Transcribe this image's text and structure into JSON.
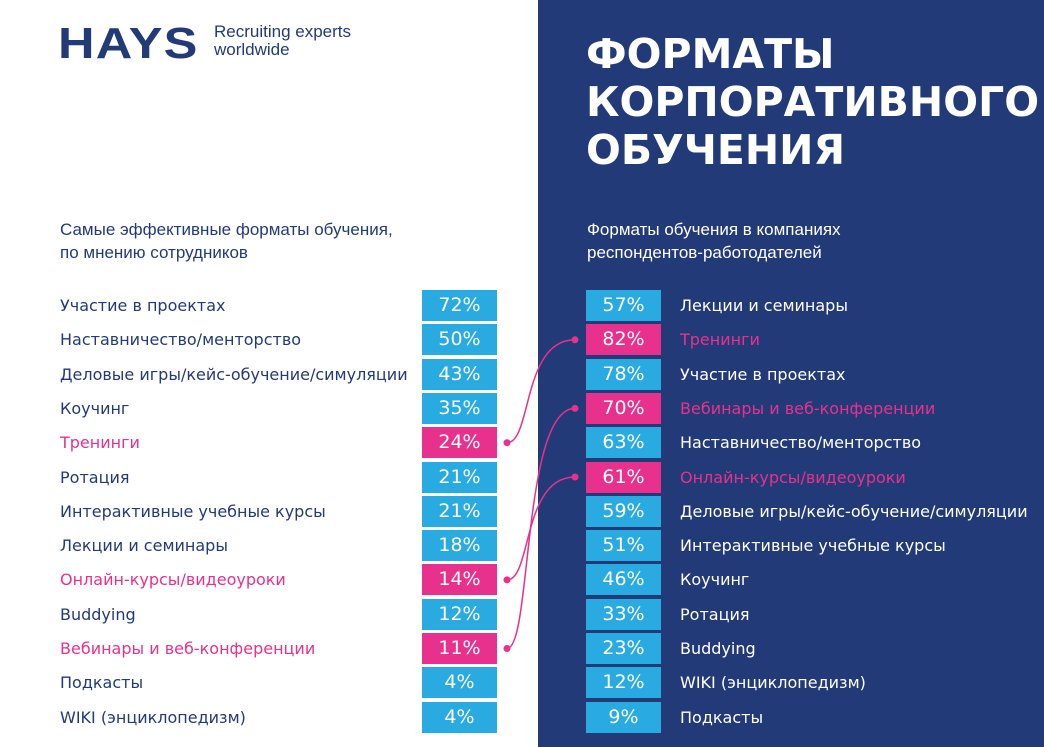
{
  "header": {
    "logo": "HAYS",
    "tagline_line1": "Recruiting experts",
    "tagline_line2": "worldwide"
  },
  "title": {
    "line1": "ФОРМАТЫ",
    "line2": "КОРПОРАТИВНОГО",
    "line3": "ОБУЧЕНИЯ"
  },
  "colors": {
    "navy": "#233a78",
    "blue": "#29abe2",
    "pink": "#e8318c"
  },
  "chart_data": [
    {
      "type": "table",
      "title": "Самые эффективные форматы обучения, по мнению сотрудников",
      "subtitle_line1": "Самые эффективные форматы обучения,",
      "subtitle_line2": "по мнению сотрудников",
      "rows": [
        {
          "label": "Участие в проектах",
          "value": "72%",
          "highlight": false
        },
        {
          "label": "Наставничество/менторство",
          "value": "50%",
          "highlight": false
        },
        {
          "label": "Деловые игры/кейс-обучение/симуляции",
          "value": "43%",
          "highlight": false
        },
        {
          "label": "Коучинг",
          "value": "35%",
          "highlight": false
        },
        {
          "label": "Тренинги",
          "value": "24%",
          "highlight": true
        },
        {
          "label": "Ротация",
          "value": "21%",
          "highlight": false
        },
        {
          "label": "Интерактивные учебные курсы",
          "value": "21%",
          "highlight": false
        },
        {
          "label": "Лекции и семинары",
          "value": "18%",
          "highlight": false
        },
        {
          "label": "Онлайн-курсы/видеоуроки",
          "value": "14%",
          "highlight": true
        },
        {
          "label": "Buddying",
          "value": "12%",
          "highlight": false
        },
        {
          "label": "Вебинары и веб-конференции",
          "value": "11%",
          "highlight": true
        },
        {
          "label": "Подкасты",
          "value": "4%",
          "highlight": false
        },
        {
          "label": "WIKI (энциклопедизм)",
          "value": "4%",
          "highlight": false
        }
      ]
    },
    {
      "type": "table",
      "title": "Форматы обучения в компаниях респондентов-работодателей",
      "subtitle_line1": "Форматы обучения в компаниях",
      "subtitle_line2": "респондентов-работодателей",
      "rows": [
        {
          "label": "Лекции и семинары",
          "value": "57%",
          "highlight": false
        },
        {
          "label": "Тренинги",
          "value": "82%",
          "highlight": true
        },
        {
          "label": "Участие в проектах",
          "value": "78%",
          "highlight": false
        },
        {
          "label": "Вебинары и веб-конференции",
          "value": "70%",
          "highlight": true
        },
        {
          "label": "Наставничество/менторство",
          "value": "63%",
          "highlight": false
        },
        {
          "label": "Онлайн-курсы/видеоуроки",
          "value": "61%",
          "highlight": true
        },
        {
          "label": "Деловые игры/кейс-обучение/симуляции",
          "value": "59%",
          "highlight": false
        },
        {
          "label": "Интерактивные учебные курсы",
          "value": "51%",
          "highlight": false
        },
        {
          "label": "Коучинг",
          "value": "46%",
          "highlight": false
        },
        {
          "label": "Ротация",
          "value": "33%",
          "highlight": false
        },
        {
          "label": "Buddying",
          "value": "23%",
          "highlight": false
        },
        {
          "label": "WIKI (энциклопедизм)",
          "value": "12%",
          "highlight": false
        },
        {
          "label": "Подкасты",
          "value": "9%",
          "highlight": false
        }
      ]
    }
  ],
  "connections": [
    [
      4,
      1
    ],
    [
      8,
      5
    ],
    [
      10,
      3
    ]
  ]
}
